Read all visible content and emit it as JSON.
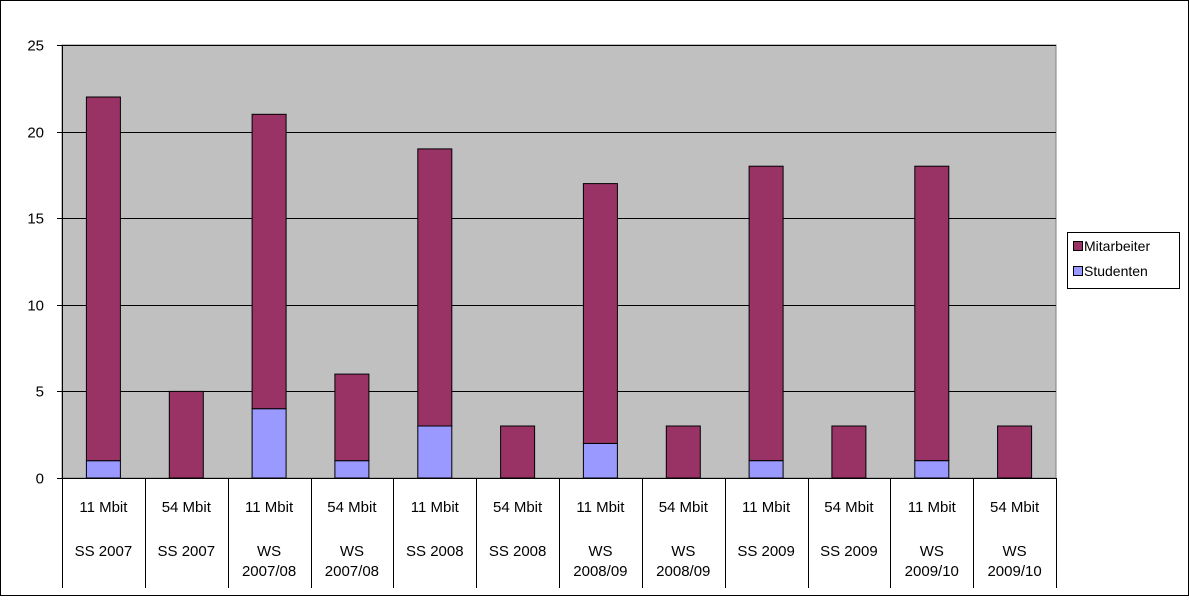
{
  "chart_data": {
    "type": "bar",
    "stacked": true,
    "categories": [
      [
        "11 Mbit",
        "SS 2007"
      ],
      [
        "54 Mbit",
        "SS 2007"
      ],
      [
        "11 Mbit",
        "WS 2007/08"
      ],
      [
        "54 Mbit",
        "WS 2007/08"
      ],
      [
        "11 Mbit",
        "SS 2008"
      ],
      [
        "54 Mbit",
        "SS 2008"
      ],
      [
        "11 Mbit",
        "WS 2008/09"
      ],
      [
        "54 Mbit",
        "WS 2008/09"
      ],
      [
        "11 Mbit",
        "SS 2009"
      ],
      [
        "54 Mbit",
        "SS 2009"
      ],
      [
        "11 Mbit",
        "WS 2009/10"
      ],
      [
        "54 Mbit",
        "WS 2009/10"
      ]
    ],
    "series": [
      {
        "name": "Studenten",
        "color": "#9999ff",
        "values": [
          1,
          0,
          4,
          1,
          3,
          0,
          2,
          0,
          1,
          0,
          1,
          0
        ]
      },
      {
        "name": "Mitarbeiter",
        "color": "#993366",
        "values": [
          21,
          5,
          17,
          5,
          16,
          3,
          15,
          3,
          17,
          3,
          17,
          3
        ]
      }
    ],
    "legend_order": [
      "Mitarbeiter",
      "Studenten"
    ],
    "yticks": [
      "0",
      "5",
      "10",
      "15",
      "20",
      "25"
    ],
    "ylim": [
      0,
      25
    ],
    "grid": true,
    "legend_position": "right",
    "plot_background": "#c0c0c0"
  }
}
